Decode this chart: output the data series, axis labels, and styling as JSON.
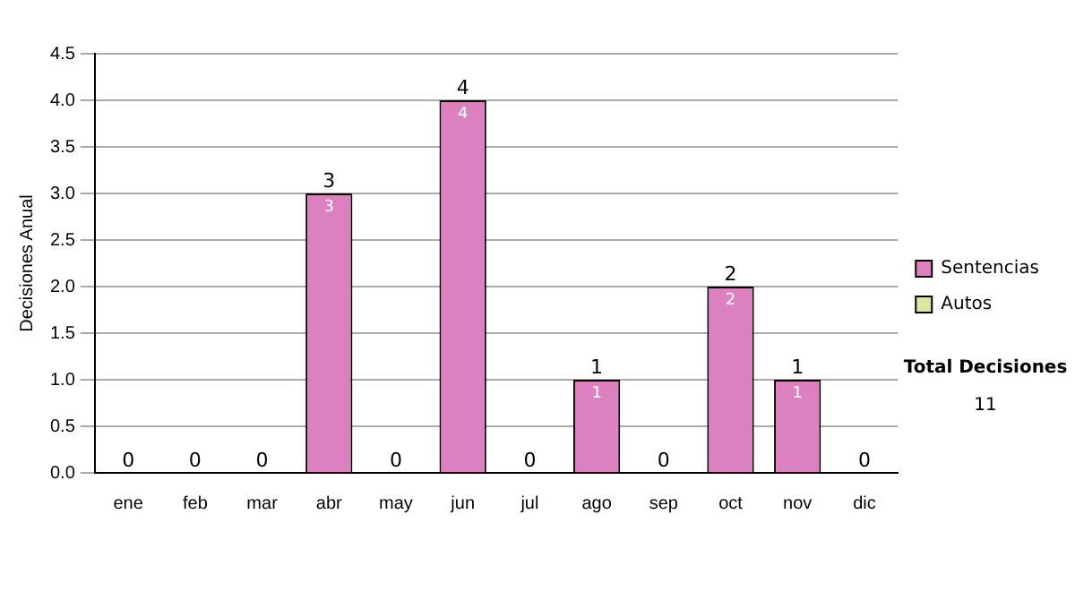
{
  "chart_data": {
    "type": "bar",
    "ylabel": "Decisiones Anual",
    "categories": [
      "ene",
      "feb",
      "mar",
      "abr",
      "may",
      "jun",
      "jul",
      "ago",
      "sep",
      "oct",
      "nov",
      "dic"
    ],
    "series": [
      {
        "name": "Sentencias",
        "color": "#dd80c0",
        "values": [
          0,
          0,
          0,
          3,
          0,
          4,
          0,
          1,
          0,
          2,
          1,
          0
        ],
        "value_labels": [
          null,
          null,
          null,
          "3",
          null,
          "4",
          null,
          "1",
          null,
          "2",
          "1",
          null
        ]
      },
      {
        "name": "Autos",
        "color": "#d8e8a0",
        "values": [
          0,
          0,
          0,
          0,
          0,
          0,
          0,
          0,
          0,
          0,
          0,
          0
        ]
      }
    ],
    "stacked": true,
    "totals": [
      "0",
      "0",
      "0",
      "3",
      "0",
      "4",
      "0",
      "1",
      "0",
      "2",
      "1",
      "0"
    ],
    "ylim": [
      0,
      4.5
    ],
    "yticks": [
      {
        "value": 0,
        "label": "0.0"
      },
      {
        "value": 0.5,
        "label": "0.5"
      },
      {
        "value": 1,
        "label": "1.0"
      },
      {
        "value": 1.5,
        "label": "1.5"
      },
      {
        "value": 2,
        "label": "2.0"
      },
      {
        "value": 2.5,
        "label": "2.5"
      },
      {
        "value": 3,
        "label": "3.0"
      },
      {
        "value": 3.5,
        "label": "3.5"
      },
      {
        "value": 4,
        "label": "4.0"
      },
      {
        "value": 4.5,
        "label": "4.5"
      }
    ],
    "grid": "y",
    "legend": "right",
    "annotations": [
      "Total Decisiones",
      "11"
    ]
  }
}
